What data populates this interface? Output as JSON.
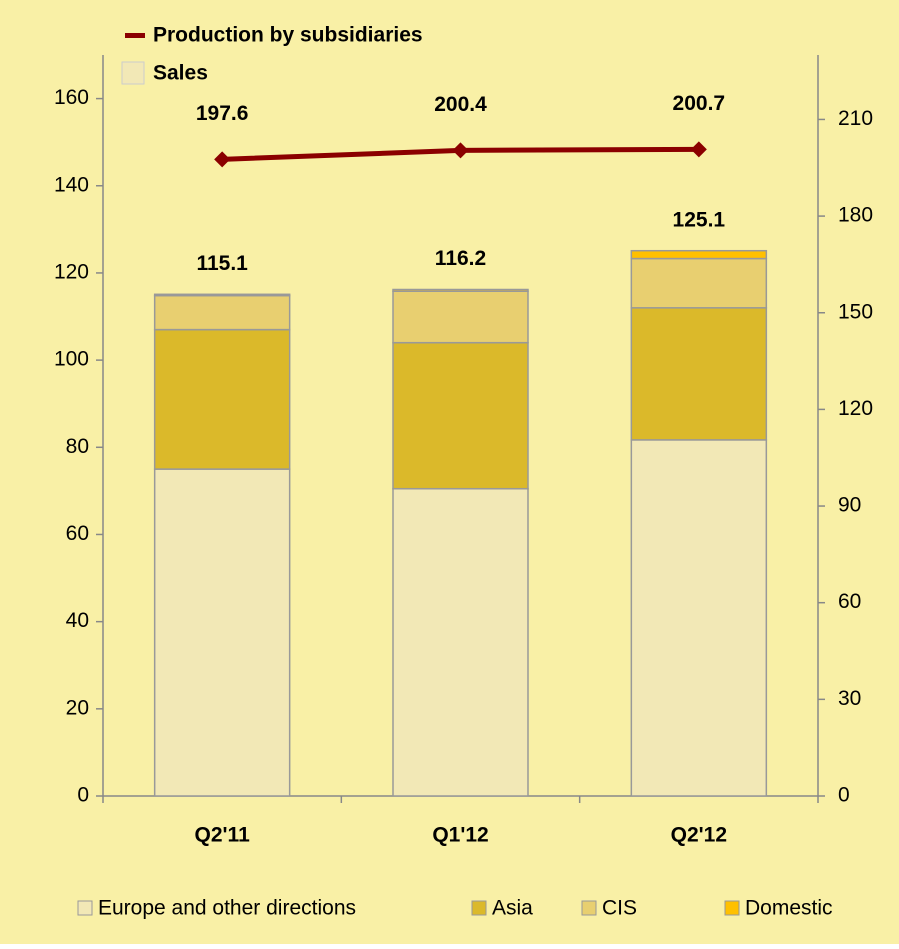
{
  "chart_data": {
    "type": "bar",
    "stacked": true,
    "categories": [
      "Q2'11",
      "Q1'12",
      "Q2'12"
    ],
    "series": [
      {
        "name": "Europe and other directions",
        "color": "#f2e8b6",
        "values": [
          75,
          70.5,
          81.7
        ]
      },
      {
        "name": "Asia",
        "color": "#dbb92a",
        "values": [
          32,
          33.5,
          30.3
        ]
      },
      {
        "name": "CIS",
        "color": "#e8cf70",
        "values": [
          7.8,
          11.8,
          11.3
        ]
      },
      {
        "name": "Domestic",
        "color": "#ffc000",
        "values": [
          0.3,
          0.4,
          1.8
        ]
      },
      {
        "name": "Production by subsidiaries",
        "color": "#8b0000",
        "type": "line",
        "axis": "y2",
        "values": [
          197.6,
          200.4,
          200.7
        ]
      }
    ],
    "sales_label": "Sales",
    "sales_color": "#f2e8b6",
    "totals": [
      115.1,
      116.2,
      125.1
    ],
    "ylim": [
      0,
      170
    ],
    "yticks": [
      0,
      20,
      40,
      60,
      80,
      100,
      120,
      140,
      160
    ],
    "y2lim": [
      0,
      230
    ],
    "y2ticks": [
      0,
      30,
      60,
      90,
      120,
      150,
      180,
      210
    ],
    "background": "#f9f0a6"
  }
}
